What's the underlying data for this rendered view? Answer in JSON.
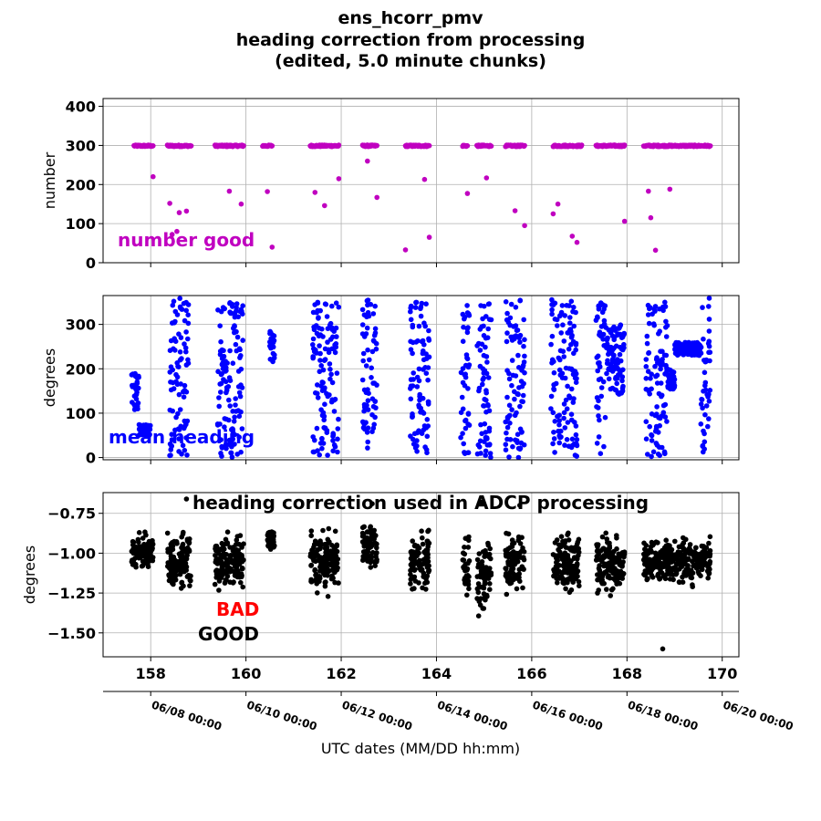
{
  "title_lines": [
    "ens_hcorr_pmv",
    "heading correction from processing",
    "(edited, 5.0 minute chunks)"
  ],
  "xlabel": "UTC dates (MM/DD hh:mm)",
  "date_ticks": [
    "06/08 00:00",
    "06/10 00:00",
    "06/12 00:00",
    "06/14 00:00",
    "06/16 00:00",
    "06/18 00:00",
    "06/20 00:00"
  ],
  "colors": {
    "number": "#c000c0",
    "heading": "#0000ff",
    "correction": "#000000",
    "bad": "#ff0000",
    "good": "#000000",
    "grid": "#b0b0b0"
  },
  "chart_data": [
    {
      "type": "scatter",
      "ylabel": "number",
      "annotation": "number good",
      "xlim": [
        157.0,
        170.35
      ],
      "ylim": [
        0,
        420
      ],
      "xticks": [
        158,
        160,
        162,
        164,
        166,
        168,
        170
      ],
      "yticks": [
        0,
        100,
        200,
        300,
        400
      ],
      "grid": true,
      "clusters": [
        [
          157.65,
          158.05
        ],
        [
          158.35,
          158.85
        ],
        [
          159.35,
          159.95
        ],
        [
          160.35,
          160.55
        ],
        [
          161.35,
          161.95
        ],
        [
          162.45,
          162.75
        ],
        [
          163.35,
          163.85
        ],
        [
          164.55,
          164.65
        ],
        [
          164.85,
          165.15
        ],
        [
          165.45,
          165.85
        ],
        [
          166.45,
          167.05
        ],
        [
          167.35,
          167.95
        ],
        [
          168.35,
          169.75
        ]
      ],
      "outliers": [
        [
          158.05,
          220
        ],
        [
          158.4,
          152
        ],
        [
          158.6,
          128
        ],
        [
          158.75,
          132
        ],
        [
          158.55,
          80
        ],
        [
          158.45,
          72
        ],
        [
          159.65,
          183
        ],
        [
          159.9,
          150
        ],
        [
          160.45,
          182
        ],
        [
          160.55,
          40
        ],
        [
          161.45,
          180
        ],
        [
          161.65,
          146
        ],
        [
          161.95,
          215
        ],
        [
          162.55,
          260
        ],
        [
          162.75,
          167
        ],
        [
          163.35,
          33
        ],
        [
          163.75,
          213
        ],
        [
          163.85,
          65
        ],
        [
          164.65,
          177
        ],
        [
          165.05,
          217
        ],
        [
          165.65,
          133
        ],
        [
          165.85,
          95
        ],
        [
          166.45,
          125
        ],
        [
          166.55,
          150
        ],
        [
          166.85,
          68
        ],
        [
          166.95,
          52
        ],
        [
          167.95,
          106
        ],
        [
          168.45,
          183
        ],
        [
          168.5,
          115
        ],
        [
          168.6,
          32
        ],
        [
          168.9,
          188
        ]
      ]
    },
    {
      "type": "scatter",
      "ylabel": "degrees",
      "annotation": "mean heading",
      "xlim": [
        157.0,
        170.35
      ],
      "ylim": [
        -5,
        365
      ],
      "xticks": [
        158,
        160,
        162,
        164,
        166,
        168,
        170
      ],
      "yticks": [
        0,
        100,
        200,
        300
      ],
      "grid": true,
      "clusters": [
        [
          157.6,
          157.75,
          100,
          190
        ],
        [
          157.75,
          158.0,
          50,
          75
        ],
        [
          158.4,
          158.55,
          0,
          360
        ],
        [
          158.55,
          158.8,
          0,
          360
        ],
        [
          159.4,
          159.55,
          0,
          360
        ],
        [
          159.55,
          159.95,
          0,
          360
        ],
        [
          160.5,
          160.6,
          210,
          290
        ],
        [
          161.4,
          161.95,
          0,
          350
        ],
        [
          162.45,
          162.75,
          20,
          360
        ],
        [
          163.45,
          163.85,
          0,
          360
        ],
        [
          164.5,
          164.7,
          5,
          350
        ],
        [
          164.85,
          165.15,
          0,
          350
        ],
        [
          165.45,
          165.85,
          0,
          360
        ],
        [
          166.4,
          166.95,
          0,
          360
        ],
        [
          167.35,
          167.55,
          0,
          350
        ],
        [
          167.55,
          167.95,
          140,
          300
        ],
        [
          168.4,
          168.85,
          0,
          350
        ],
        [
          168.85,
          169.0,
          150,
          200
        ],
        [
          169.0,
          169.55,
          230,
          260
        ],
        [
          169.55,
          169.75,
          0,
          360
        ]
      ]
    },
    {
      "type": "scatter",
      "ylabel": "degrees",
      "annotation": "heading correction used in ADCP processing",
      "legend": [
        "BAD",
        "GOOD"
      ],
      "xlim": [
        157.0,
        170.35
      ],
      "ylim": [
        -1.65,
        -0.62
      ],
      "xticks": [
        158,
        160,
        162,
        164,
        166,
        168,
        170
      ],
      "yticks": [
        -1.5,
        -1.25,
        -1.0,
        -0.75
      ],
      "ytick_labels": [
        "−1.50",
        "−1.25",
        "−1.00",
        "−0.75"
      ],
      "grid": true,
      "clusters": [
        [
          157.6,
          158.05,
          -1.0,
          0.09
        ],
        [
          158.35,
          158.85,
          -1.05,
          0.14
        ],
        [
          159.35,
          159.95,
          -1.05,
          0.15
        ],
        [
          160.45,
          160.6,
          -0.92,
          0.05
        ],
        [
          161.35,
          161.95,
          -1.05,
          0.15
        ],
        [
          162.45,
          162.75,
          -0.95,
          0.13
        ],
        [
          163.45,
          163.85,
          -1.05,
          0.14
        ],
        [
          164.55,
          164.7,
          -1.1,
          0.16
        ],
        [
          164.85,
          165.15,
          -1.15,
          0.2
        ],
        [
          165.45,
          165.85,
          -1.05,
          0.14
        ],
        [
          166.45,
          167.0,
          -1.05,
          0.15
        ],
        [
          167.35,
          167.95,
          -1.08,
          0.14
        ],
        [
          168.35,
          169.75,
          -1.05,
          0.11
        ]
      ],
      "outliers": [
        [
          168.75,
          -1.6
        ],
        [
          158.75,
          -0.66
        ],
        [
          162.65,
          -0.69
        ],
        [
          164.95,
          -0.68
        ],
        [
          165.75,
          -0.7
        ]
      ]
    }
  ]
}
